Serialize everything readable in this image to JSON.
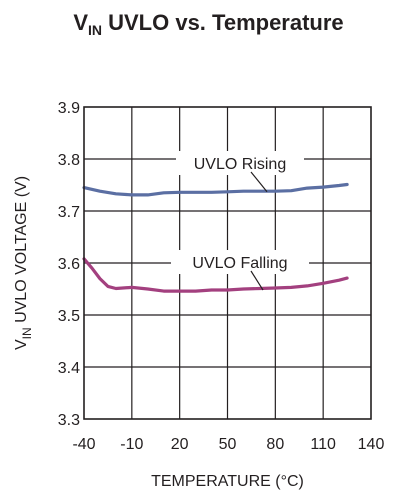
{
  "chart_data": {
    "type": "line",
    "title": {
      "prefix": "V",
      "sub": "IN",
      "rest": " UVLO vs. Temperature"
    },
    "xlabel": "TEMPERATURE (°C)",
    "ylabel": {
      "prefix": "V",
      "sub": "IN",
      "rest": " UVLO VOLTAGE (V)"
    },
    "xlim": [
      -40,
      140
    ],
    "ylim": [
      3.3,
      3.9
    ],
    "xticks": [
      "-40",
      "-10",
      "20",
      "50",
      "80",
      "110",
      "140"
    ],
    "yticks": [
      "3.3",
      "3.4",
      "3.5",
      "3.6",
      "3.7",
      "3.8",
      "3.9"
    ],
    "grid": true,
    "series": [
      {
        "name": "UVLO Rising",
        "color": "#5b6fa3",
        "x": [
          -40,
          -30,
          -20,
          -10,
          0,
          10,
          20,
          30,
          40,
          50,
          60,
          70,
          80,
          90,
          100,
          110,
          120,
          125
        ],
        "y": [
          3.745,
          3.738,
          3.733,
          3.731,
          3.731,
          3.735,
          3.736,
          3.736,
          3.736,
          3.737,
          3.738,
          3.738,
          3.738,
          3.739,
          3.744,
          3.746,
          3.749,
          3.751
        ]
      },
      {
        "name": "UVLO Falling",
        "color": "#a3407f",
        "x": [
          -40,
          -35,
          -30,
          -25,
          -20,
          -10,
          0,
          10,
          20,
          30,
          40,
          50,
          60,
          70,
          80,
          90,
          100,
          110,
          120,
          125
        ],
        "y": [
          3.608,
          3.59,
          3.57,
          3.555,
          3.551,
          3.553,
          3.55,
          3.546,
          3.546,
          3.546,
          3.548,
          3.548,
          3.55,
          3.551,
          3.552,
          3.553,
          3.556,
          3.561,
          3.567,
          3.571
        ]
      }
    ],
    "annotations": [
      "UVLO Rising",
      "UVLO Falling"
    ]
  }
}
